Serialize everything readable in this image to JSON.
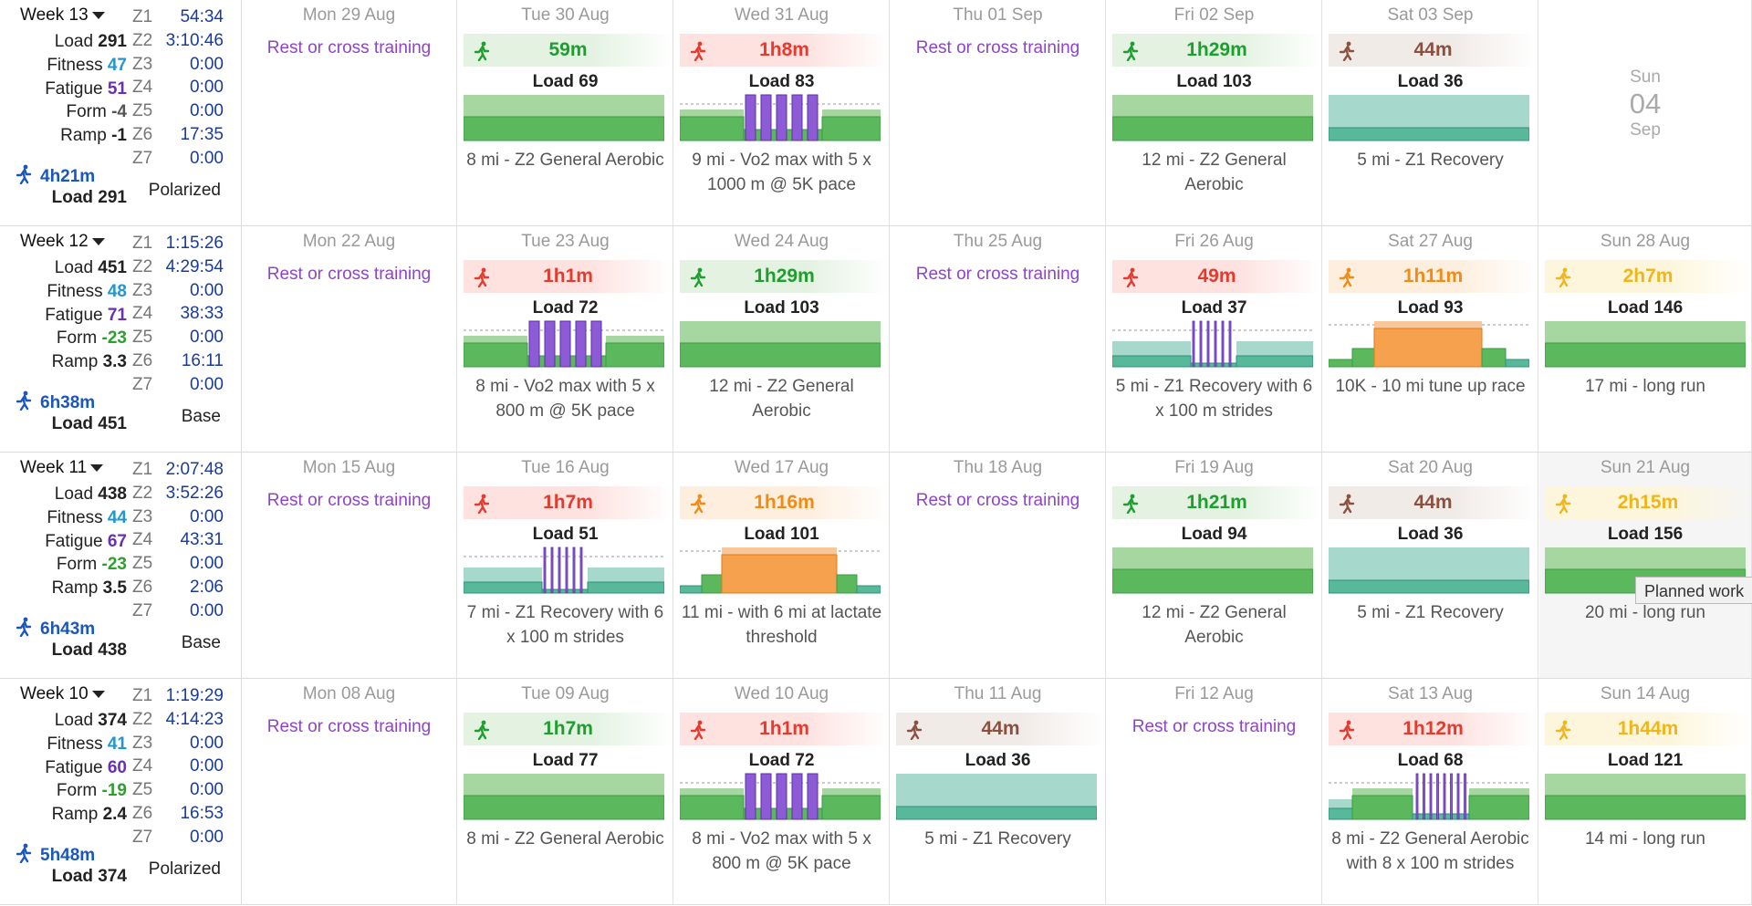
{
  "colors": {
    "green_bg": "#e3f2e1",
    "green_text": "#1e9e2f",
    "red_bg": "#fde2e0",
    "red_text": "#e53a2d",
    "orange_bg": "#fdeedd",
    "orange_text": "#f28a17",
    "yellow_bg": "#fdf6dd",
    "yellow_text": "#f1b51a",
    "brown_bg": "#f1ebe8",
    "brown_text": "#8a5040",
    "rest": "#8e44c9"
  },
  "rest_label": "Rest or cross training",
  "tooltip": "Planned work",
  "weeks": [
    {
      "title": "Week 13",
      "load": "291",
      "fitness": "47",
      "fatigue": "51",
      "form": "-4",
      "form_color": "neutral",
      "ramp": "-1",
      "zones": [
        [
          "Z1",
          "54:34"
        ],
        [
          "Z2",
          "3:10:46"
        ],
        [
          "Z3",
          "0:00"
        ],
        [
          "Z4",
          "0:00"
        ],
        [
          "Z5",
          "0:00"
        ],
        [
          "Z6",
          "17:35"
        ],
        [
          "Z7",
          "0:00"
        ]
      ],
      "run_time": "4h21m",
      "distribution": "Polarized",
      "days": [
        {
          "label": "Mon 29 Aug",
          "rest": true
        },
        {
          "label": "Tue 30 Aug",
          "dur": "59m",
          "color": "green",
          "load": "Load 69",
          "desc": "8 mi - Z2 General Aerobic",
          "chart": "aerobic"
        },
        {
          "label": "Wed 31 Aug",
          "dur": "1h8m",
          "color": "red",
          "load": "Load 83",
          "desc": "9 mi - Vo2 max with 5 x 1000 m @ 5K pace",
          "chart": "vo2_5"
        },
        {
          "label": "Thu 01 Sep",
          "rest": true
        },
        {
          "label": "Fri 02 Sep",
          "dur": "1h29m",
          "color": "green",
          "load": "Load 103",
          "desc": "12 mi - Z2 General Aerobic",
          "chart": "aerobic"
        },
        {
          "label": "Sat 03 Sep",
          "dur": "44m",
          "color": "brown",
          "load": "Load 36",
          "desc": "5 mi - Z1 Recovery",
          "chart": "recovery"
        },
        {
          "sun_empty": true,
          "sun_dow": "Sun",
          "sun_day": "04",
          "sun_mon": "Sep"
        }
      ]
    },
    {
      "title": "Week 12",
      "load": "451",
      "fitness": "48",
      "fatigue": "71",
      "form": "-23",
      "form_color": "green",
      "ramp": "3.3",
      "zones": [
        [
          "Z1",
          "1:15:26"
        ],
        [
          "Z2",
          "4:29:54"
        ],
        [
          "Z3",
          "0:00"
        ],
        [
          "Z4",
          "38:33"
        ],
        [
          "Z5",
          "0:00"
        ],
        [
          "Z6",
          "16:11"
        ],
        [
          "Z7",
          "0:00"
        ]
      ],
      "run_time": "6h38m",
      "distribution": "Base",
      "days": [
        {
          "label": "Mon 22 Aug",
          "rest": true
        },
        {
          "label": "Tue 23 Aug",
          "dur": "1h1m",
          "color": "red",
          "load": "Load 72",
          "desc": "8 mi - Vo2 max with 5 x 800 m @ 5K pace",
          "chart": "vo2_5"
        },
        {
          "label": "Wed 24 Aug",
          "dur": "1h29m",
          "color": "green",
          "load": "Load 103",
          "desc": "12 mi - Z2 General Aerobic",
          "chart": "aerobic"
        },
        {
          "label": "Thu 25 Aug",
          "rest": true
        },
        {
          "label": "Fri 26 Aug",
          "dur": "49m",
          "color": "red",
          "load": "Load 37",
          "desc": "5 mi - Z1 Recovery with 6 x 100 m strides",
          "chart": "strides"
        },
        {
          "label": "Sat 27 Aug",
          "dur": "1h11m",
          "color": "orange",
          "load": "Load 93",
          "desc": "10K - 10 mi tune up race",
          "chart": "race"
        },
        {
          "label": "Sun 28 Aug",
          "dur": "2h7m",
          "color": "yellow",
          "load": "Load 146",
          "desc": "17 mi - long run",
          "chart": "aerobic"
        }
      ]
    },
    {
      "title": "Week 11",
      "load": "438",
      "fitness": "44",
      "fatigue": "67",
      "form": "-23",
      "form_color": "green",
      "ramp": "3.5",
      "zones": [
        [
          "Z1",
          "2:07:48"
        ],
        [
          "Z2",
          "3:52:26"
        ],
        [
          "Z3",
          "0:00"
        ],
        [
          "Z4",
          "43:31"
        ],
        [
          "Z5",
          "0:00"
        ],
        [
          "Z6",
          "2:06"
        ],
        [
          "Z7",
          "0:00"
        ]
      ],
      "run_time": "6h43m",
      "distribution": "Base",
      "days": [
        {
          "label": "Mon 15 Aug",
          "rest": true
        },
        {
          "label": "Tue 16 Aug",
          "dur": "1h7m",
          "color": "red",
          "load": "Load 51",
          "desc": "7 mi - Z1 Recovery with 6 x 100 m strides",
          "chart": "strides"
        },
        {
          "label": "Wed 17 Aug",
          "dur": "1h16m",
          "color": "orange",
          "load": "Load 101",
          "desc": "11 mi - with 6 mi at lactate threshold",
          "chart": "threshold"
        },
        {
          "label": "Thu 18 Aug",
          "rest": true
        },
        {
          "label": "Fri 19 Aug",
          "dur": "1h21m",
          "color": "green",
          "load": "Load 94",
          "desc": "12 mi - Z2 General Aerobic",
          "chart": "aerobic"
        },
        {
          "label": "Sat 20 Aug",
          "dur": "44m",
          "color": "brown",
          "load": "Load 36",
          "desc": "5 mi - Z1 Recovery",
          "chart": "recovery"
        },
        {
          "label": "Sun 21 Aug",
          "dur": "2h15m",
          "color": "yellow",
          "load": "Load 156",
          "desc": "20 mi - long run",
          "chart": "aerobic",
          "hover": true
        }
      ]
    },
    {
      "title": "Week 10",
      "load": "374",
      "fitness": "41",
      "fatigue": "60",
      "form": "-19",
      "form_color": "green",
      "ramp": "2.4",
      "zones": [
        [
          "Z1",
          "1:19:29"
        ],
        [
          "Z2",
          "4:14:23"
        ],
        [
          "Z3",
          "0:00"
        ],
        [
          "Z4",
          "0:00"
        ],
        [
          "Z5",
          "0:00"
        ],
        [
          "Z6",
          "16:53"
        ],
        [
          "Z7",
          "0:00"
        ]
      ],
      "run_time": "5h48m",
      "distribution": "Polarized",
      "days": [
        {
          "label": "Mon 08 Aug",
          "rest": true
        },
        {
          "label": "Tue 09 Aug",
          "dur": "1h7m",
          "color": "green",
          "load": "Load 77",
          "desc": "8 mi - Z2 General Aerobic",
          "chart": "aerobic"
        },
        {
          "label": "Wed 10 Aug",
          "dur": "1h1m",
          "color": "red",
          "load": "Load 72",
          "desc": "8 mi - Vo2 max with 5 x 800 m @ 5K pace",
          "chart": "vo2_5"
        },
        {
          "label": "Thu 11 Aug",
          "dur": "44m",
          "color": "brown",
          "load": "Load 36",
          "desc": "5 mi - Z1 Recovery",
          "chart": "recovery"
        },
        {
          "label": "Fri 12 Aug",
          "rest": true
        },
        {
          "label": "Sat 13 Aug",
          "dur": "1h12m",
          "color": "red",
          "load": "Load 68",
          "desc": "8 mi - Z2 General Aerobic with 8 x 100 m strides",
          "chart": "aerobic_strides"
        },
        {
          "label": "Sun 14 Aug",
          "dur": "1h44m",
          "color": "yellow",
          "load": "Load 121",
          "desc": "14 mi - long run",
          "chart": "aerobic"
        }
      ]
    }
  ]
}
